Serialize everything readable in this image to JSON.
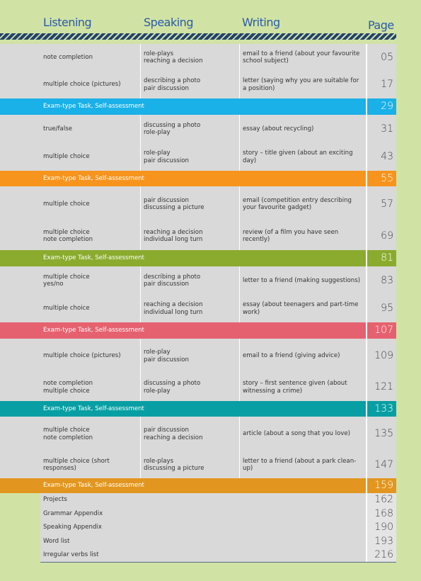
{
  "header": {
    "columns": [
      "Listening",
      "Speaking",
      "Writing",
      "Page"
    ]
  },
  "sections": [
    {
      "units": [
        {
          "listening": "note completion",
          "speaking": "role-plays\nreaching a decision",
          "writing": "email to a friend (about your favourite school subject)",
          "page": "05"
        },
        {
          "listening": "multiple choice (pictures)",
          "speaking": "describing a photo\npair discussion",
          "writing": "letter (saying why you are suitable for a position)",
          "page": "17"
        }
      ],
      "exam": {
        "label": "Exam-type Task, Self-assessment",
        "page": "29"
      }
    },
    {
      "units": [
        {
          "listening": "true/false",
          "speaking": "discussing a photo\nrole-play",
          "writing": "essay (about recycling)",
          "page": "31"
        },
        {
          "listening": "multiple choice",
          "speaking": "role-play\npair discussion",
          "writing": "story – title given (about an exciting day)",
          "page": "43"
        }
      ],
      "exam": {
        "label": "Exam-type Task, Self-assessment",
        "page": "55"
      }
    },
    {
      "units": [
        {
          "listening": "multiple choice",
          "speaking": "pair discussion\ndiscussing a picture",
          "writing": "email (competition entry describing your favourite gadget)",
          "page": "57"
        },
        {
          "listening": "multiple choice\nnote completion",
          "speaking": "reaching a decision\nindividual long turn",
          "writing": "review (of a film you have seen recently)",
          "page": "69"
        }
      ],
      "exam": {
        "label": "Exam-type Task, Self-assessment",
        "page": "81"
      }
    },
    {
      "units": [
        {
          "listening": "multiple choice\nyes/no",
          "speaking": "describing a photo\npair discussion",
          "writing": "letter to a friend (making suggestions)",
          "page": "83"
        },
        {
          "listening": "multiple choice",
          "speaking": "reaching a decision\nindividual long turn",
          "writing": "essay (about teenagers and part-time work)",
          "page": "95"
        }
      ],
      "exam": {
        "label": "Exam-type Task, Self-assessment",
        "page": "107"
      }
    },
    {
      "units": [
        {
          "listening": "multiple choice (pictures)",
          "speaking": "role-play\npair discussion",
          "writing": "email to a friend (giving advice)",
          "page": "109"
        },
        {
          "listening": "note completion\nmultiple choice",
          "speaking": "discussing a photo\nrole-play",
          "writing": "story – first sentence given (about witnessing a crime)",
          "page": "121"
        }
      ],
      "exam": {
        "label": "Exam-type Task, Self-assessment",
        "page": "133"
      }
    },
    {
      "units": [
        {
          "listening": "multiple choice\nnote completion",
          "speaking": "pair discussion\nreaching a decision",
          "writing": "article (about a song that you love)",
          "page": "135"
        },
        {
          "listening": "multiple choice (short responses)",
          "speaking": "role-plays\ndiscussing a picture",
          "writing": "letter to a friend (about a park clean-up)",
          "page": "147"
        }
      ],
      "exam": {
        "label": "Exam-type Task, Self-assessment",
        "page": "159"
      }
    }
  ],
  "appendix": [
    {
      "label": "Projects",
      "page": "162"
    },
    {
      "label": "Grammar Appendix",
      "page": "168"
    },
    {
      "label": "Speaking Appendix",
      "page": "190"
    },
    {
      "label": "Word list",
      "page": "193"
    },
    {
      "label": "Irregular verbs list",
      "page": "216"
    }
  ]
}
